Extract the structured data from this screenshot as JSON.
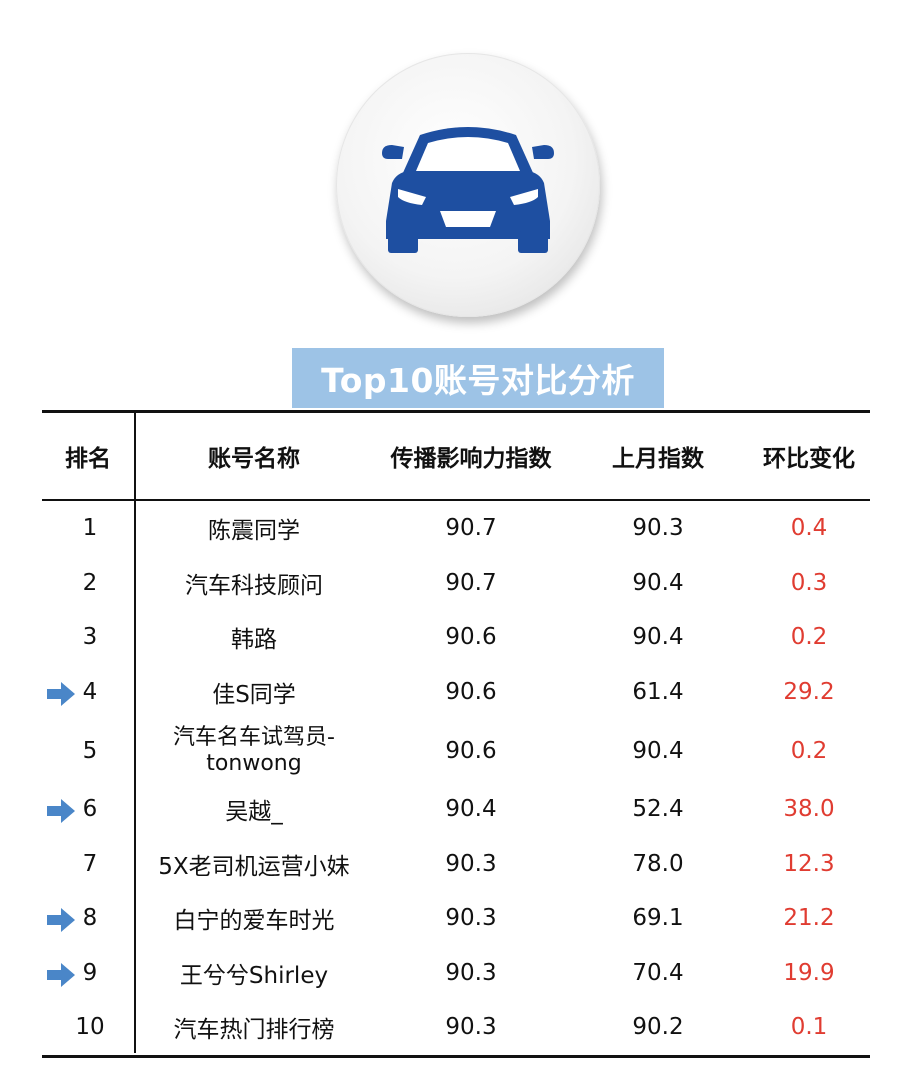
{
  "title": "Top10账号对比分析",
  "logo": {
    "icon": "car-front-icon",
    "color": "#1e4fa1"
  },
  "table": {
    "headers": [
      "排名",
      "账号名称",
      "传播影响力指数",
      "上月指数",
      "环比变化"
    ],
    "rows": [
      {
        "rank": "1",
        "name": "陈震同学",
        "index": "90.7",
        "prev": "90.3",
        "change": "0.4",
        "arrow": false
      },
      {
        "rank": "2",
        "name": "汽车科技顾问",
        "index": "90.7",
        "prev": "90.4",
        "change": "0.3",
        "arrow": false
      },
      {
        "rank": "3",
        "name": "韩路",
        "index": "90.6",
        "prev": "90.4",
        "change": "0.2",
        "arrow": false
      },
      {
        "rank": "4",
        "name": "佳S同学",
        "index": "90.6",
        "prev": "61.4",
        "change": "29.2",
        "arrow": true
      },
      {
        "rank": "5",
        "name": "汽车名车试驾员-tonwong",
        "name_line1": "汽车名车试驾员-",
        "name_line2": "tonwong",
        "index": "90.6",
        "prev": "90.4",
        "change": "0.2",
        "arrow": false
      },
      {
        "rank": "6",
        "name": "吴越_",
        "index": "90.4",
        "prev": "52.4",
        "change": "38.0",
        "arrow": true
      },
      {
        "rank": "7",
        "name": "5X老司机运营小妹",
        "index": "90.3",
        "prev": "78.0",
        "change": "12.3",
        "arrow": false
      },
      {
        "rank": "8",
        "name": "白宁的爱车时光",
        "index": "90.3",
        "prev": "69.1",
        "change": "21.2",
        "arrow": true
      },
      {
        "rank": "9",
        "name": "王兮兮Shirley",
        "index": "90.3",
        "prev": "70.4",
        "change": "19.9",
        "arrow": true
      },
      {
        "rank": "10",
        "name": "汽车热门排行榜",
        "index": "90.3",
        "prev": "90.2",
        "change": "0.1",
        "arrow": false
      }
    ]
  },
  "colors": {
    "title_bg": "#9dc3e6",
    "change_text": "#e03c31",
    "arrow": "#4a86c8"
  }
}
